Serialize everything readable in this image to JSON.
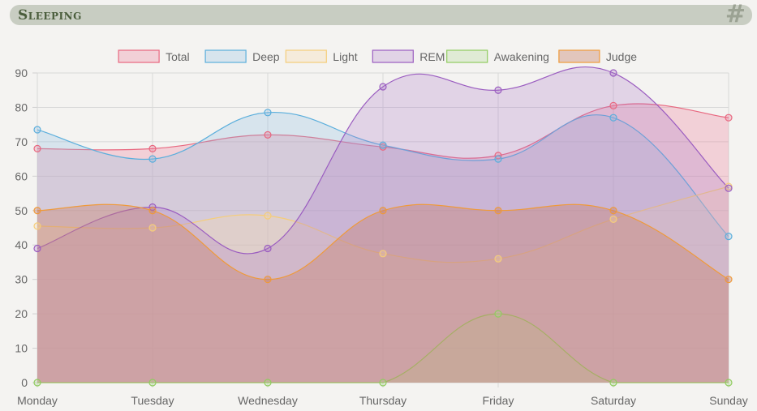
{
  "header": {
    "title": "Sleeping",
    "icon": "hash-icon"
  },
  "chart_data": {
    "type": "area",
    "categories": [
      "Monday",
      "Tuesday",
      "Wednesday",
      "Thursday",
      "Friday",
      "Saturday",
      "Sunday"
    ],
    "ylim": [
      0,
      90
    ],
    "yticks": [
      0,
      10,
      20,
      30,
      40,
      50,
      60,
      70,
      80,
      90
    ],
    "legend_position": "top",
    "series": [
      {
        "name": "Total",
        "values": [
          68,
          68,
          72,
          68.5,
          66,
          80.5,
          77
        ],
        "color": "#e8677f",
        "fill": "rgba(240,130,155,0.30)"
      },
      {
        "name": "Deep",
        "values": [
          73.5,
          65,
          78.5,
          69,
          65,
          77,
          42.5
        ],
        "color": "#5aaedc",
        "fill": "rgba(140,190,225,0.28)"
      },
      {
        "name": "Light",
        "values": [
          45.5,
          45,
          48.5,
          37.5,
          36,
          47.5,
          57
        ],
        "color": "#f5cd7a",
        "fill": "rgba(250,220,170,0.30)"
      },
      {
        "name": "REM",
        "values": [
          39,
          51,
          39,
          86,
          85,
          90,
          56.5
        ],
        "color": "#9a5cc0",
        "fill": "rgba(170,120,200,0.26)"
      },
      {
        "name": "Awakening",
        "values": [
          0,
          0,
          0,
          0,
          20,
          0,
          0
        ],
        "color": "#90cc60",
        "fill": "rgba(180,220,150,0.30)"
      },
      {
        "name": "Judge",
        "values": [
          50,
          50,
          30,
          50,
          50,
          50,
          30
        ],
        "color": "#ef9a3a",
        "fill": "rgba(200,130,110,0.40)"
      }
    ]
  }
}
